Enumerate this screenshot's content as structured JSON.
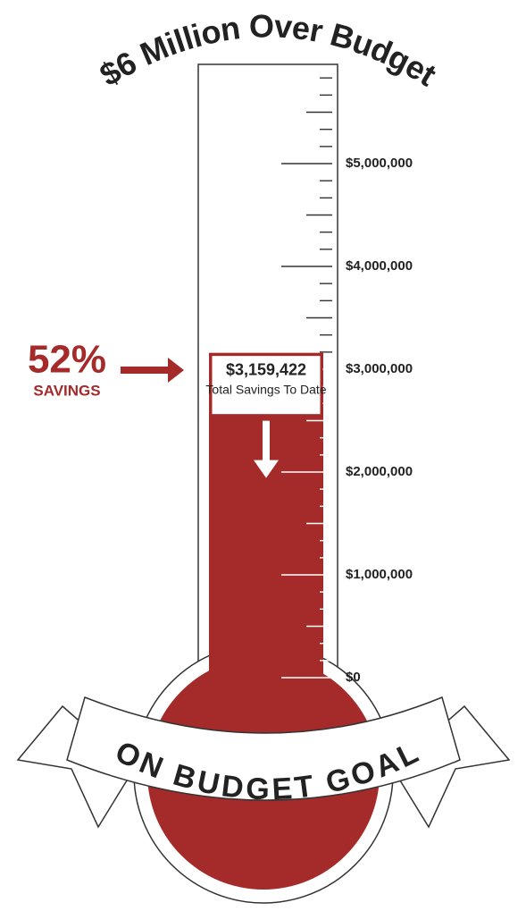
{
  "chart_data": {
    "type": "thermometer",
    "title": "$6 Million Over Budget",
    "value": 3159422,
    "value_label": "$3,159,422",
    "annotation": "Total Savings To Date",
    "savings_percent": 52,
    "savings_percent_label": "52%",
    "savings_label": "SAVINGS",
    "goal_label": "ON BUDGET GOAL",
    "color": "#a52a2a",
    "ylim": [
      0,
      6000000
    ],
    "yticks": [
      {
        "value": 0,
        "label": "$0"
      },
      {
        "value": 1000000,
        "label": "$1,000,000"
      },
      {
        "value": 2000000,
        "label": "$2,000,000"
      },
      {
        "value": 3000000,
        "label": "$3,000,000"
      },
      {
        "value": 4000000,
        "label": "$4,000,000"
      },
      {
        "value": 5000000,
        "label": "$5,000,000"
      }
    ],
    "minor_ticks_per_interval": 6
  }
}
